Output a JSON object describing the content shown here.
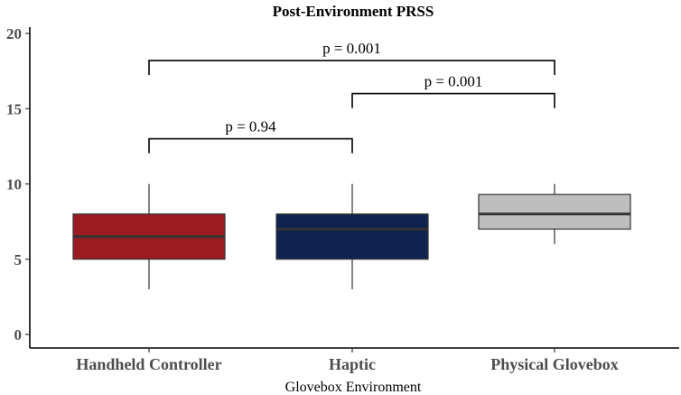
{
  "chart_data": {
    "type": "box",
    "title": "Post-Environment PRSS",
    "xlabel": "Glovebox Environment",
    "ylabel": "",
    "ylim": [
      0,
      21
    ],
    "yticks": [
      "0",
      "5",
      "10",
      "15",
      "20"
    ],
    "grid": false,
    "legend": "none",
    "categories": [
      "Handheld Controller",
      "Haptic",
      "Physical Glovebox"
    ],
    "boxes": [
      {
        "category": "Handheld Controller",
        "whisker_low": 3,
        "q1": 5,
        "median": 6.5,
        "q3": 8,
        "whisker_high": 10,
        "fill": "#9b1c20",
        "median_color": "#333333"
      },
      {
        "category": "Haptic",
        "whisker_low": 3,
        "q1": 5,
        "median": 7,
        "q3": 8,
        "whisker_high": 10,
        "fill": "#0f2350",
        "median_color": "#333333"
      },
      {
        "category": "Physical Glovebox",
        "whisker_low": 6,
        "q1": 7,
        "median": 8,
        "q3": 9.3,
        "whisker_high": 10,
        "fill": "#bebebe",
        "median_color": "#333333"
      }
    ],
    "annotations": [
      {
        "from": "Handheld Controller",
        "to": "Haptic",
        "y": 13,
        "label": "p = 0.94"
      },
      {
        "from": "Haptic",
        "to": "Physical Glovebox",
        "y": 16,
        "label": "p = 0.001"
      },
      {
        "from": "Handheld Controller",
        "to": "Physical Glovebox",
        "y": 18.2,
        "label": "p = 0.001"
      }
    ]
  }
}
